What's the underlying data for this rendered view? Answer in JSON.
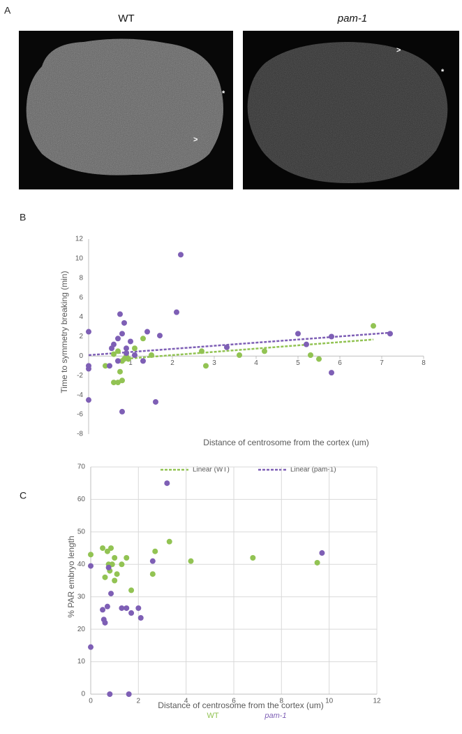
{
  "figure": {
    "panels": [
      "A",
      "B",
      "C"
    ],
    "images": [
      {
        "title": "WT",
        "annotations": [
          "*",
          ">"
        ]
      },
      {
        "title": "pam-1",
        "annotations": [
          ">",
          "*"
        ]
      }
    ]
  },
  "chart_data": [
    {
      "type": "scatter",
      "ylabel": "Time to symmetry breaking (min)",
      "xlabel": "Distance of centrosome from the cortex (um)",
      "xlim": [
        0,
        8
      ],
      "xticks": [
        1,
        2,
        3,
        4,
        5,
        6,
        7,
        8
      ],
      "ylim": [
        -8,
        12
      ],
      "yticks": [
        -8,
        -6,
        -4,
        -2,
        0,
        2,
        4,
        6,
        8,
        10,
        12
      ],
      "grid": false,
      "series": [
        {
          "color": "#92c353",
          "x": [
            0.4,
            0.6,
            0.7,
            0.8,
            0.75,
            0.8,
            0.85,
            0.9,
            0.95,
            1.1,
            1.3,
            1.5,
            2.7,
            2.8,
            3.6,
            4.2,
            5.3,
            5.5,
            6.8,
            0.6,
            0.7
          ],
          "values": [
            -1,
            -2.7,
            -2.7,
            -2.5,
            -1.6,
            -0.5,
            -0.3,
            0,
            -0.3,
            0.8,
            1.8,
            0.1,
            0.5,
            -1,
            0.1,
            0.5,
            0.1,
            -0.3,
            3.1,
            0.2,
            0.5
          ]
        },
        {
          "color": "#7e5fb5",
          "x": [
            0,
            0,
            0,
            0,
            0.5,
            0.55,
            0.6,
            0.7,
            0.75,
            0.8,
            0.85,
            0.8,
            0.9,
            0.9,
            1,
            1.1,
            1.3,
            1.4,
            1.6,
            1.7,
            2.1,
            2.2,
            3.3,
            5,
            5.2,
            5.8,
            5.8,
            7.2,
            0.7
          ],
          "values": [
            2.5,
            -1,
            -1.3,
            -4.5,
            -1,
            0.8,
            1.2,
            1.8,
            4.3,
            2.3,
            3.4,
            -5.7,
            0.8,
            0.3,
            1.5,
            0.1,
            -0.5,
            2.5,
            -4.7,
            2.1,
            4.5,
            10.4,
            0.9,
            2.3,
            1.2,
            2,
            -1.7,
            2.3,
            -0.5
          ]
        }
      ],
      "trendlines": [
        {
          "name": "Linear (WT)",
          "color": "#92c353",
          "x": [
            0.8,
            6.8
          ],
          "values": [
            -0.3,
            1.7
          ]
        },
        {
          "name": "Linear (pam-1)",
          "color": "#7e5fb5",
          "x": [
            0,
            7.2
          ],
          "values": [
            0.1,
            2.4
          ]
        }
      ]
    },
    {
      "type": "scatter",
      "ylabel": "% PAR embryo length",
      "xlabel": "Distance of centrosome from the cortex (um)",
      "xlim": [
        0,
        12
      ],
      "xticks": [
        0,
        2,
        4,
        6,
        8,
        10,
        12
      ],
      "ylim": [
        0,
        70
      ],
      "yticks": [
        0,
        10,
        20,
        30,
        40,
        50,
        60,
        70
      ],
      "grid": true,
      "series": [
        {
          "name": "WT",
          "color": "#92c353",
          "x": [
            0,
            0.5,
            0.6,
            0.7,
            0.8,
            0.85,
            0.9,
            1,
            1,
            1.1,
            1.3,
            1.5,
            1.7,
            2.6,
            2.7,
            3.3,
            4.2,
            6.8,
            9.5,
            0.75
          ],
          "values": [
            43,
            45,
            36,
            44,
            38,
            45,
            40,
            42,
            35,
            37,
            40,
            42,
            32,
            37,
            44,
            47,
            41,
            42,
            40.5,
            40
          ]
        },
        {
          "name": "pam-1",
          "color": "#7e5fb5",
          "x": [
            0,
            0,
            0.5,
            0.55,
            0.6,
            0.7,
            0.75,
            0.8,
            0.85,
            1.3,
            1.5,
            1.6,
            1.7,
            2,
            2.1,
            2.6,
            3.2,
            9.7
          ],
          "values": [
            39.5,
            14.5,
            26,
            23,
            22,
            27,
            39,
            0,
            31,
            26.5,
            26.5,
            0,
            25,
            26.5,
            23.5,
            41,
            65,
            43.5
          ]
        }
      ]
    }
  ]
}
